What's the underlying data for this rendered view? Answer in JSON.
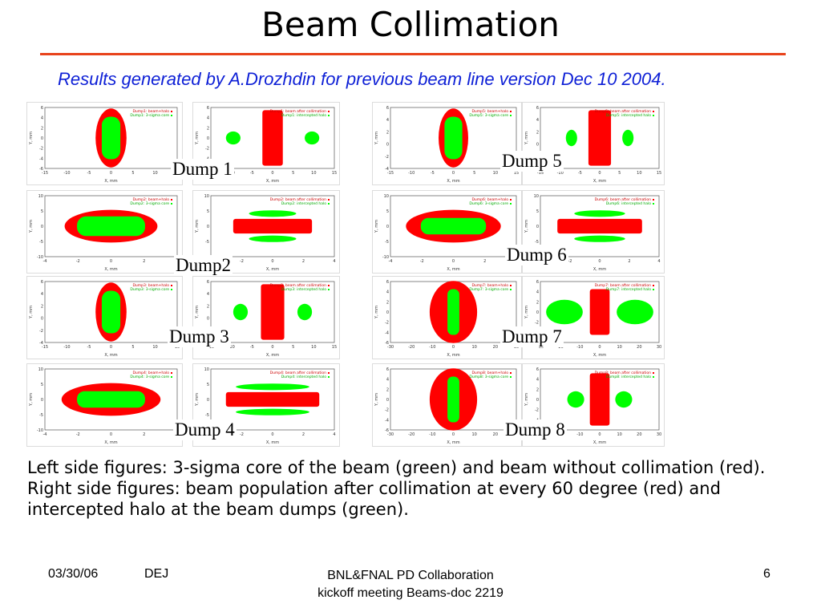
{
  "slide": {
    "title": "Beam Collimation",
    "subtitle": "Results generated by A.Drozhdin for previous beam line version Dec 10 2004.",
    "caption": "Left side figures: 3-sigma core of the beam (green) and beam without collimation (red). Right side figures: beam population after collimation at every 60 degree (red) and intercepted halo at the beam dumps (green)."
  },
  "dump_labels": [
    "Dump 1",
    "Dump2",
    "Dump 3",
    "Dump 4",
    "Dump 5",
    "Dump 6",
    "Dump 7",
    "Dump 8"
  ],
  "plots": [
    {
      "legend": [
        "Dump1: beam+halo",
        "Dump1: 3-sigma core"
      ],
      "kind": "left",
      "xlabel": "X, mm",
      "ylabel": "Y, mm",
      "xticks": [
        "-15",
        "-10",
        "-5",
        "0",
        "5",
        "10",
        "15"
      ],
      "yticks": [
        "6",
        "4",
        "2",
        "0",
        "-2",
        "-4",
        "-6"
      ]
    },
    {
      "legend": [
        "Dump1: beam after collimation",
        "Dump1: intercepted halo"
      ],
      "kind": "right",
      "xlabel": "X, mm",
      "ylabel": "Y, mm",
      "xticks": [
        "-15",
        "-10",
        "-5",
        "0",
        "5",
        "10",
        "15"
      ],
      "yticks": [
        "6",
        "4",
        "2",
        "0",
        "-2",
        "-4",
        "-6"
      ]
    },
    {
      "legend": [
        "Dump2: beam+halo",
        "Dump2: 3-sigma core"
      ],
      "kind": "left",
      "xlabel": "X, mm",
      "ylabel": "Y, mm",
      "xticks": [
        "-4",
        "-2",
        "0",
        "2",
        "4"
      ],
      "yticks": [
        "10",
        "5",
        "0",
        "-5",
        "-10"
      ]
    },
    {
      "legend": [
        "Dump2: beam after collimation",
        "Dump2: intercepted halo"
      ],
      "kind": "right",
      "xlabel": "X, mm",
      "ylabel": "Y, mm",
      "xticks": [
        "-4",
        "-2",
        "0",
        "2",
        "4"
      ],
      "yticks": [
        "10",
        "5",
        "0",
        "-5",
        "-10"
      ]
    },
    {
      "legend": [
        "Dump3: beam+halo",
        "Dump3: 3-sigma core"
      ],
      "kind": "left",
      "xlabel": "X, mm",
      "ylabel": "Y, mm",
      "xticks": [
        "-15",
        "-10",
        "-5",
        "0",
        "5",
        "10",
        "15"
      ],
      "yticks": [
        "6",
        "4",
        "2",
        "0",
        "-2",
        "-4"
      ]
    },
    {
      "legend": [
        "Dump3: beam after collimation",
        "Dump3: intercepted halo"
      ],
      "kind": "right",
      "xlabel": "X, mm",
      "ylabel": "Y, mm",
      "xticks": [
        "-15",
        "-10",
        "-5",
        "0",
        "5",
        "10",
        "15"
      ],
      "yticks": [
        "6",
        "4",
        "2",
        "0",
        "-2",
        "-4"
      ]
    },
    {
      "legend": [
        "Dump4: beam+halo",
        "Dump4: 3-sigma core"
      ],
      "kind": "left",
      "xlabel": "X, mm",
      "ylabel": "Y, mm",
      "xticks": [
        "-4",
        "-2",
        "0",
        "2",
        "4"
      ],
      "yticks": [
        "10",
        "5",
        "0",
        "-5",
        "-10"
      ]
    },
    {
      "legend": [
        "Dump4: beam after collimation",
        "Dump4: intercepted halo"
      ],
      "kind": "right",
      "xlabel": "X, mm",
      "ylabel": "Y, mm",
      "xticks": [
        "-4",
        "-2",
        "0",
        "2",
        "4"
      ],
      "yticks": [
        "10",
        "5",
        "0",
        "-5",
        "-10"
      ]
    },
    {
      "legend": [
        "Dump5: beam+halo",
        "Dump5: 3-sigma core"
      ],
      "kind": "left",
      "xlabel": "X, mm",
      "ylabel": "Y, mm",
      "xticks": [
        "-15",
        "-10",
        "-5",
        "0",
        "5",
        "10",
        "15"
      ],
      "yticks": [
        "6",
        "4",
        "2",
        "0",
        "-2",
        "-4"
      ]
    },
    {
      "legend": [
        "Dump5: beam after collimation",
        "Dump5: intercepted halo"
      ],
      "kind": "right",
      "xlabel": "X, mm",
      "ylabel": "Y, mm",
      "xticks": [
        "-15",
        "-10",
        "-5",
        "0",
        "5",
        "10",
        "15"
      ],
      "yticks": [
        "6",
        "4",
        "2",
        "0",
        "-2",
        "-4"
      ]
    },
    {
      "legend": [
        "Dump6: beam+halo",
        "Dump6: 3-sigma core"
      ],
      "kind": "left",
      "xlabel": "X, mm",
      "ylabel": "Y, mm",
      "xticks": [
        "-4",
        "-2",
        "0",
        "2",
        "4"
      ],
      "yticks": [
        "10",
        "5",
        "0",
        "-5",
        "-10"
      ]
    },
    {
      "legend": [
        "Dump6: beam after collimation",
        "Dump6: intercepted halo"
      ],
      "kind": "right",
      "xlabel": "X, mm",
      "ylabel": "Y, mm",
      "xticks": [
        "-4",
        "-2",
        "0",
        "2",
        "4"
      ],
      "yticks": [
        "10",
        "5",
        "0",
        "-5",
        "-10"
      ]
    },
    {
      "legend": [
        "Dump7: beam+halo",
        "Dump7: 3-sigma core"
      ],
      "kind": "left",
      "xlabel": "X, mm",
      "ylabel": "Y, mm",
      "xticks": [
        "-30",
        "-20",
        "-10",
        "0",
        "10",
        "20",
        "30"
      ],
      "yticks": [
        "6",
        "4",
        "2",
        "0",
        "-2",
        "-4",
        "-6"
      ]
    },
    {
      "legend": [
        "Dump7: beam after collimation",
        "Dump7: intercepted halo"
      ],
      "kind": "right",
      "xlabel": "X, mm",
      "ylabel": "Y, mm",
      "xticks": [
        "-30",
        "-20",
        "-10",
        "0",
        "10",
        "20",
        "30"
      ],
      "yticks": [
        "6",
        "4",
        "2",
        "0",
        "-2",
        "-4",
        "-6"
      ]
    },
    {
      "legend": [
        "Dump8: beam+halo",
        "Dump8: 3-sigma core"
      ],
      "kind": "left",
      "xlabel": "X, mm",
      "ylabel": "Y, mm",
      "xticks": [
        "-30",
        "-20",
        "-10",
        "0",
        "10",
        "20",
        "30"
      ],
      "yticks": [
        "6",
        "4",
        "2",
        "0",
        "-2",
        "-4",
        "-6"
      ]
    },
    {
      "legend": [
        "Dump8: beam after collimation",
        "Dump8: intercepted halo"
      ],
      "kind": "right",
      "xlabel": "X, mm",
      "ylabel": "Y, mm",
      "xticks": [
        "-30",
        "-20",
        "-10",
        "0",
        "10",
        "20",
        "30"
      ],
      "yticks": [
        "6",
        "4",
        "2",
        "0",
        "-2",
        "-4",
        "-6"
      ]
    }
  ],
  "footer": {
    "date": "03/30/06",
    "author": "DEJ",
    "center_line1": "BNL&FNAL PD Collaboration",
    "center_line2": "kickoff meeting Beams-doc 2219",
    "page": "6"
  },
  "colors": {
    "rule": "#e8431c",
    "subtitle": "#0d1fd6",
    "beam": "#ff0000",
    "core": "#00ff00"
  }
}
